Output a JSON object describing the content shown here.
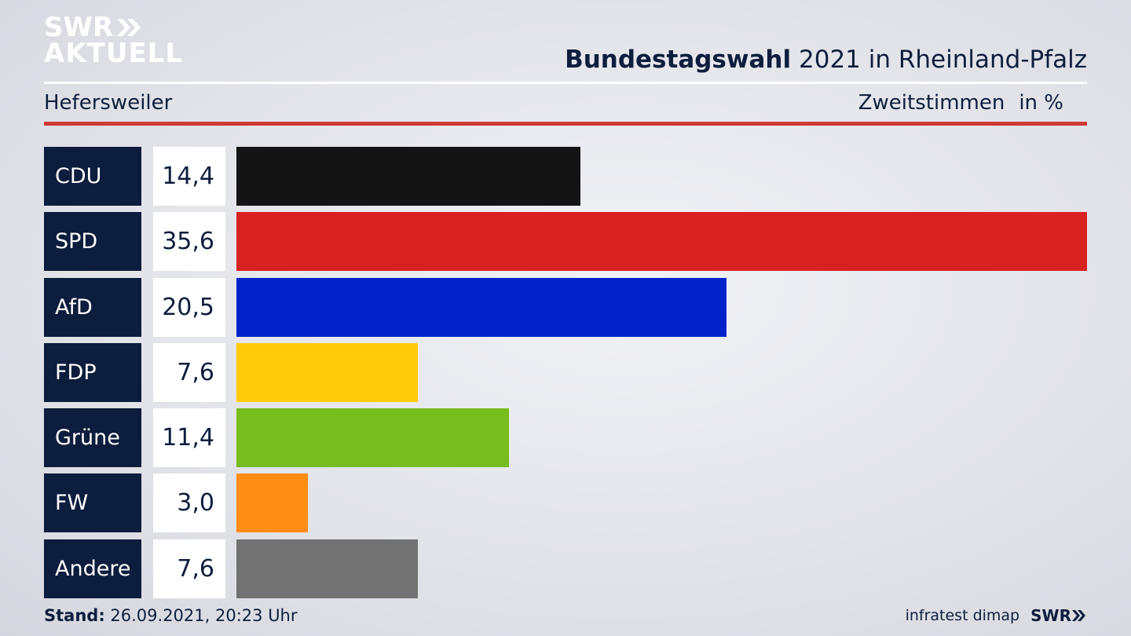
{
  "brand": {
    "logo_line1": "SWR",
    "logo_line2": "AKTUELL"
  },
  "header": {
    "title_bold": "Bundestagswahl",
    "title_rest": "2021 in Rheinland-Pfalz",
    "location": "Hefersweiler",
    "measure": "Zweitstimmen",
    "unit": "in %"
  },
  "chart_data": {
    "type": "bar",
    "orientation": "horizontal",
    "categories": [
      "CDU",
      "SPD",
      "AfD",
      "FDP",
      "Grüne",
      "FW",
      "Andere"
    ],
    "values": [
      14.4,
      35.6,
      20.5,
      7.6,
      11.4,
      3.0,
      7.6
    ],
    "value_labels": [
      "14,4",
      "35,6",
      "20,5",
      "7,6",
      "11,4",
      "3,0",
      "7,6"
    ],
    "colors": [
      "#141414",
      "#d82121",
      "#0022c8",
      "#ffcc0a",
      "#76bd1d",
      "#ff8c14",
      "#727272"
    ],
    "xlim": [
      0,
      35.6
    ]
  },
  "footer": {
    "stand_label": "Stand:",
    "stand_value": "26.09.2021, 20:23 Uhr",
    "source": "infratest dimap",
    "brand": "SWR"
  }
}
